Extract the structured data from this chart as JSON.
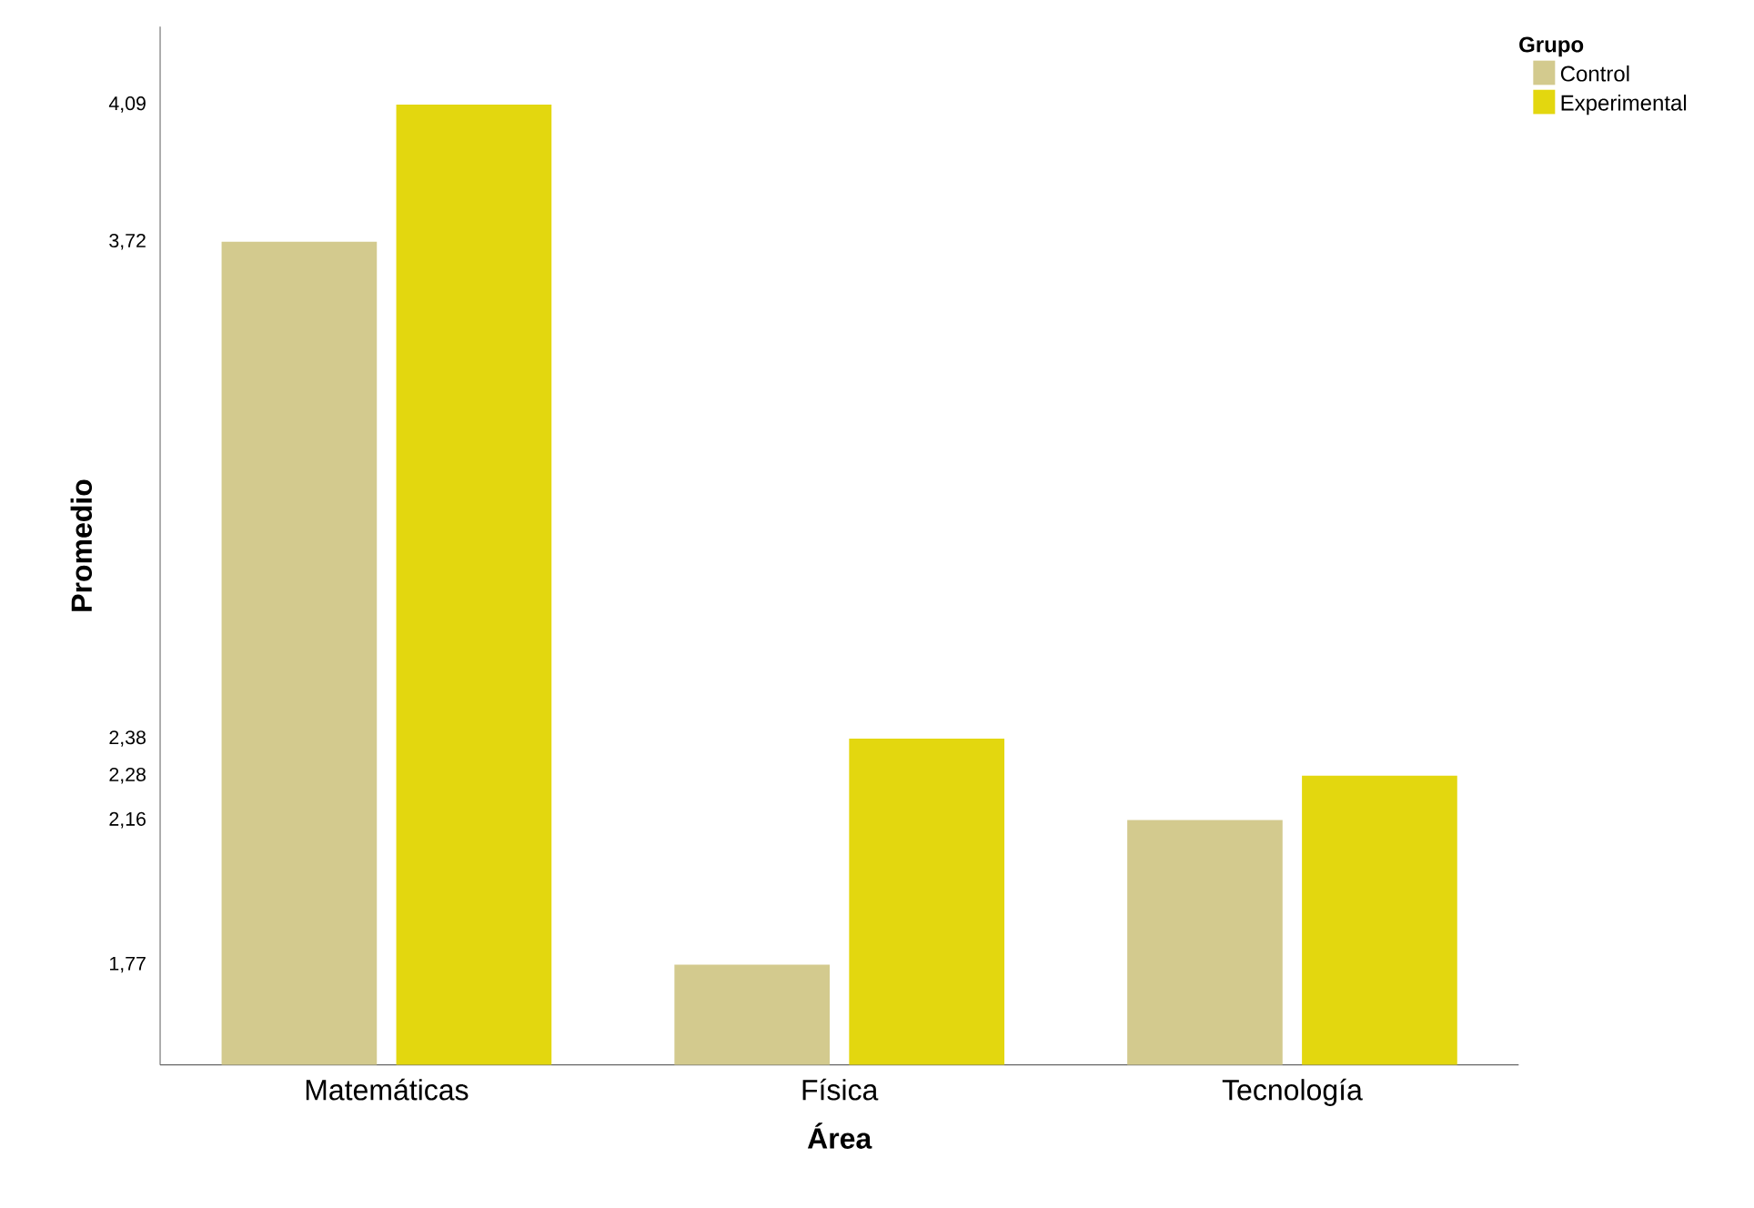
{
  "chart_data": {
    "type": "bar",
    "xlabel": "Área",
    "ylabel": "Promedio",
    "legend_title": "Grupo",
    "categories": [
      "Matemáticas",
      "Física",
      "Tecnología"
    ],
    "series": [
      {
        "name": "Control",
        "color": "#d3ca8e",
        "values": [
          3.72,
          1.77,
          2.16
        ]
      },
      {
        "name": "Experimental",
        "color": "#e3d70f",
        "values": [
          4.09,
          2.38,
          2.28
        ]
      }
    ],
    "ylim": [
      1.5,
      4.3
    ],
    "yticks": [
      {
        "value": 1.77,
        "label": "1,77"
      },
      {
        "value": 2.16,
        "label": "2,16"
      },
      {
        "value": 2.28,
        "label": "2,28"
      },
      {
        "value": 2.38,
        "label": "2,38"
      },
      {
        "value": 3.72,
        "label": "3,72"
      },
      {
        "value": 4.09,
        "label": "4,09"
      }
    ],
    "legend": "top right",
    "grid": false
  }
}
